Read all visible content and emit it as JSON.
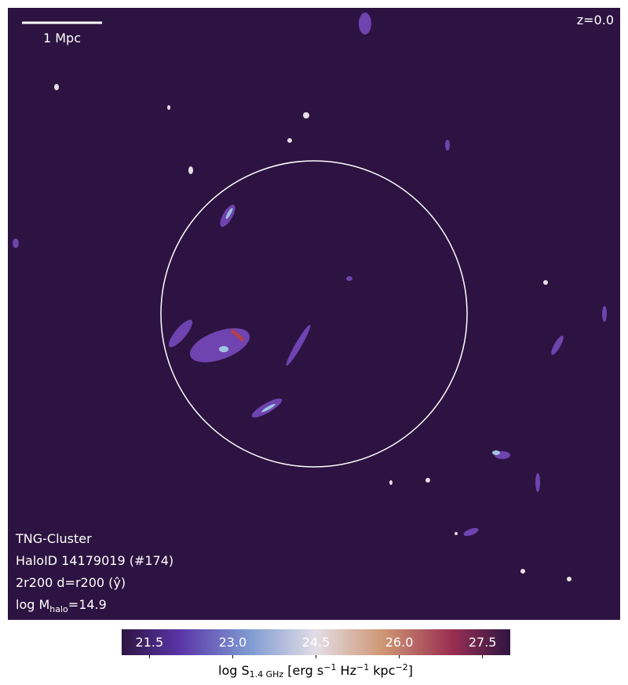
{
  "chart_data": {
    "type": "image",
    "scale_bar": "1 Mpc",
    "redshift": "z=0.0",
    "annotations": {
      "simulation": "TNG-Cluster",
      "halo": "HaloID 14179019 (#174)",
      "projection": "2r200 d=r200 (ŷ)",
      "mass_parts": [
        "log M",
        "halo",
        "=14.9"
      ]
    },
    "colorbar": {
      "clim": [
        21.0,
        28.0
      ],
      "ticks": [
        21.5,
        {
          "value": 23.0,
          "label": "23.0"
        },
        24.5,
        {
          "value": 26.0,
          "label": "26.0"
        },
        27.5
      ],
      "label_parts": [
        "log S",
        "1.4 GHz",
        " [erg s",
        "−1",
        " Hz",
        "−1",
        " kpc",
        "−2",
        "]"
      ]
    }
  }
}
